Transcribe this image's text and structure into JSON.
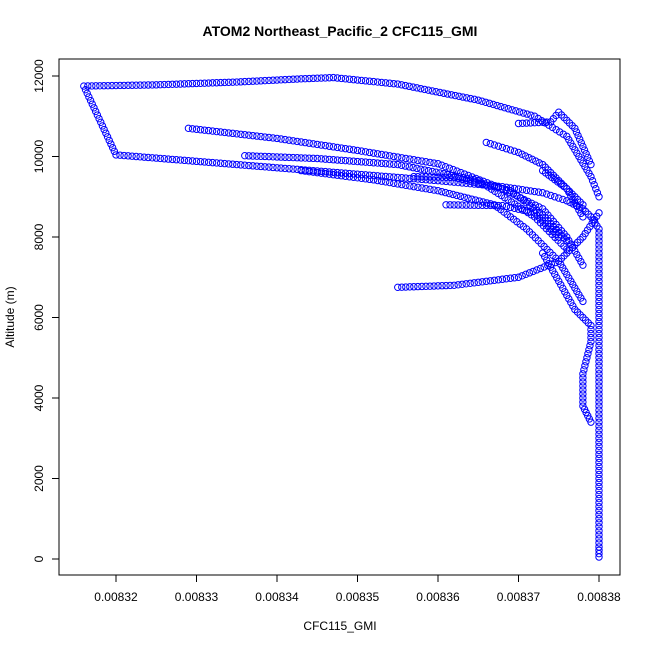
{
  "chart_data": {
    "type": "scatter",
    "title": "ATOM2 Northeast_Pacific_2 CFC115_GMI",
    "xlabel": "CFC115_GMI",
    "ylabel": "Altitude (m)",
    "xlim": [
      0.008315,
      0.00838
    ],
    "ylim": [
      0,
      12100
    ],
    "x_ticks": [
      0.00832,
      0.00833,
      0.00834,
      0.00835,
      0.00836,
      0.00837,
      0.00838
    ],
    "x_tick_labels": [
      "0.00832",
      "0.00833",
      "0.00834",
      "0.00835",
      "0.00836",
      "0.00837",
      "0.00838"
    ],
    "y_ticks": [
      0,
      2000,
      4000,
      6000,
      8000,
      10000,
      12000
    ],
    "y_tick_labels": [
      "0",
      "2000",
      "4000",
      "6000",
      "8000",
      "10000",
      "12000"
    ],
    "marker": "open-circle",
    "color": "#0000ff",
    "series": [
      {
        "points": [
          [
            0.00838,
            50
          ],
          [
            0.00838,
            300
          ],
          [
            0.00838,
            600
          ],
          [
            0.00838,
            1000
          ],
          [
            0.00838,
            1400
          ],
          [
            0.00838,
            1800
          ],
          [
            0.00838,
            2200
          ],
          [
            0.00838,
            2600
          ],
          [
            0.00838,
            3000
          ],
          [
            0.00838,
            3400
          ],
          [
            0.00838,
            3800
          ],
          [
            0.00838,
            4200
          ],
          [
            0.00838,
            4600
          ],
          [
            0.00838,
            5000
          ],
          [
            0.00838,
            5400
          ],
          [
            0.00838,
            5800
          ],
          [
            0.00838,
            6200
          ],
          [
            0.00838,
            6600
          ],
          [
            0.00838,
            7000
          ],
          [
            0.00838,
            7400
          ],
          [
            0.00838,
            7800
          ],
          [
            0.00838,
            8200
          ],
          [
            0.008379,
            8500
          ],
          [
            0.008378,
            8700
          ],
          [
            0.008376,
            8900
          ],
          [
            0.008373,
            9100
          ],
          [
            0.008368,
            9250
          ],
          [
            0.00836,
            9400
          ],
          [
            0.00835,
            9560
          ],
          [
            0.00834,
            9720
          ],
          [
            0.00833,
            9880
          ],
          [
            0.00832,
            10040
          ],
          [
            0.008316,
            11750
          ],
          [
            0.008325,
            11780
          ],
          [
            0.008335,
            11850
          ],
          [
            0.008343,
            11930
          ],
          [
            0.008347,
            11960
          ],
          [
            0.008355,
            11800
          ],
          [
            0.008365,
            11400
          ],
          [
            0.008372,
            11000
          ],
          [
            0.008376,
            10500
          ],
          [
            0.008379,
            9500
          ],
          [
            0.00838,
            9000
          ]
        ]
      },
      {
        "points": [
          [
            0.00838,
            8600
          ],
          [
            0.008378,
            8000
          ],
          [
            0.008375,
            7400
          ],
          [
            0.00837,
            7000
          ],
          [
            0.008362,
            6800
          ],
          [
            0.008355,
            6750
          ]
        ]
      },
      {
        "points": [
          [
            0.008373,
            7600
          ],
          [
            0.008377,
            6200
          ],
          [
            0.008379,
            5800
          ],
          [
            0.008379,
            5400
          ],
          [
            0.008378,
            4600
          ],
          [
            0.008378,
            4200
          ],
          [
            0.008378,
            3800
          ],
          [
            0.008379,
            3400
          ]
        ]
      },
      {
        "points": [
          [
            0.008329,
            10700
          ],
          [
            0.00834,
            10450
          ],
          [
            0.00835,
            10150
          ],
          [
            0.00836,
            9820
          ],
          [
            0.008368,
            9200
          ],
          [
            0.008373,
            8700
          ],
          [
            0.008376,
            8000
          ],
          [
            0.008378,
            7300
          ]
        ]
      },
      {
        "points": [
          [
            0.008336,
            10020
          ],
          [
            0.008345,
            9950
          ],
          [
            0.008355,
            9800
          ],
          [
            0.008365,
            9400
          ],
          [
            0.008372,
            8500
          ],
          [
            0.008376,
            7700
          ]
        ]
      },
      {
        "points": [
          [
            0.008343,
            9650
          ],
          [
            0.008352,
            9420
          ],
          [
            0.00836,
            9150
          ],
          [
            0.008367,
            8800
          ],
          [
            0.008371,
            8200
          ],
          [
            0.008375,
            7400
          ],
          [
            0.008378,
            6400
          ]
        ]
      },
      {
        "points": [
          [
            0.008357,
            9500
          ],
          [
            0.008362,
            9480
          ],
          [
            0.008369,
            9150
          ],
          [
            0.008373,
            8550
          ],
          [
            0.008376,
            7900
          ]
        ]
      },
      {
        "points": [
          [
            0.008361,
            8800
          ],
          [
            0.008368,
            8780
          ],
          [
            0.008372,
            8600
          ],
          [
            0.008375,
            8000
          ]
        ]
      },
      {
        "points": [
          [
            0.008366,
            10350
          ],
          [
            0.00837,
            10100
          ],
          [
            0.008373,
            9800
          ],
          [
            0.008376,
            9200
          ],
          [
            0.008378,
            8500
          ]
        ]
      },
      {
        "points": [
          [
            0.008373,
            9650
          ],
          [
            0.008376,
            9200
          ],
          [
            0.008378,
            8800
          ]
        ]
      },
      {
        "points": [
          [
            0.00837,
            10820
          ],
          [
            0.008374,
            10860
          ],
          [
            0.008375,
            11100
          ],
          [
            0.008377,
            10700
          ],
          [
            0.008379,
            9800
          ]
        ]
      }
    ]
  }
}
